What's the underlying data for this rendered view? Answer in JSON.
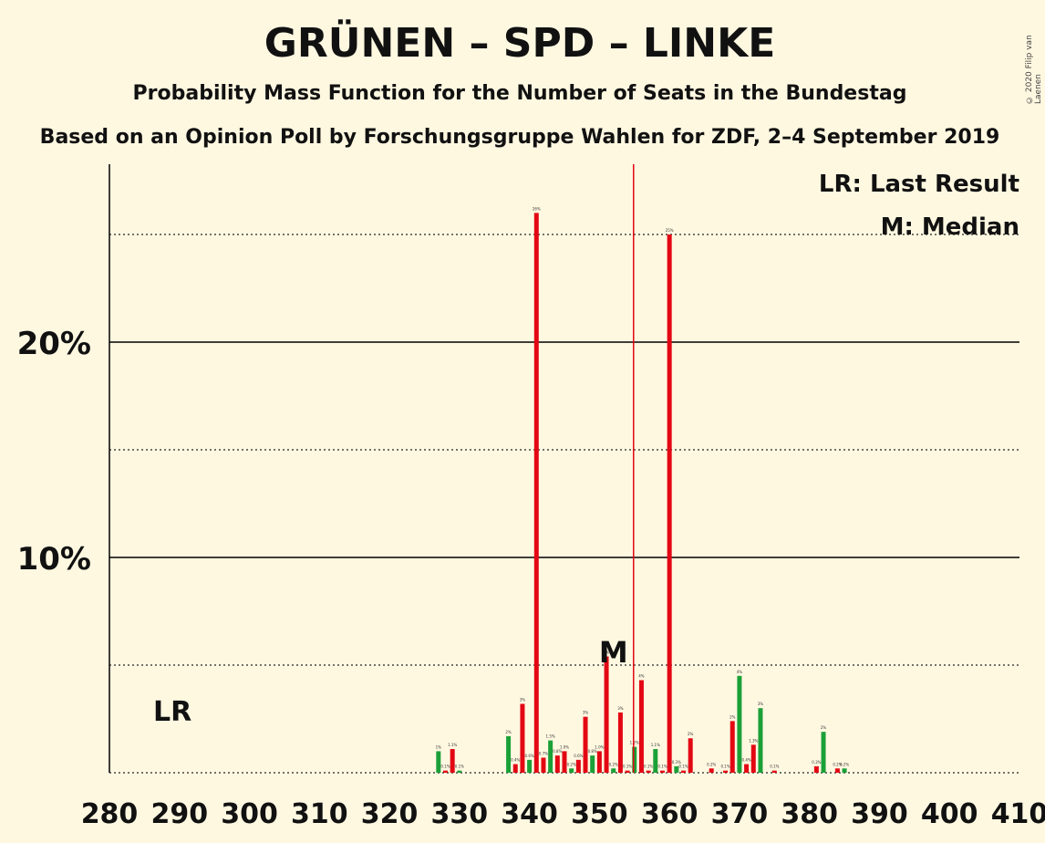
{
  "header": {
    "title": "GRÜNEN – SPD – LINKE",
    "subtitle": "Probability Mass Function for the Number of Seats in the Bundestag",
    "subtitle2": "Based on an Opinion Poll by Forschungsgruppe Wahlen for ZDF, 2–4 September 2019",
    "copyright": "© 2020 Filip van Laenen"
  },
  "legend": {
    "lr": "LR: Last Result",
    "median": "M: Median"
  },
  "chart_data": {
    "type": "bar",
    "xlabel": "",
    "ylabel": "",
    "xlim": [
      280,
      410
    ],
    "ylim": [
      0,
      28
    ],
    "x_ticks": [
      280,
      290,
      300,
      310,
      320,
      330,
      340,
      350,
      360,
      370,
      380,
      390,
      400,
      410
    ],
    "y_ticks": [
      {
        "value": 10,
        "label": "10%"
      },
      {
        "value": 20,
        "label": "20%"
      }
    ],
    "y_dotted_lines": [
      5,
      15,
      25
    ],
    "majority_line": 355,
    "last_result": {
      "x": 289,
      "label": "LR"
    },
    "median": {
      "x": 352,
      "label": "M"
    },
    "colors": {
      "red": "#E30613",
      "green": "#1AA037",
      "majority": "#E30613"
    },
    "bars": [
      {
        "x": 327,
        "value": 1.0,
        "color": "green",
        "label": "1%"
      },
      {
        "x": 328,
        "value": 0.1,
        "color": "red",
        "label": "0.1%"
      },
      {
        "x": 329,
        "value": 1.1,
        "color": "red",
        "label": "1.1%"
      },
      {
        "x": 330,
        "value": 0.1,
        "color": "green",
        "label": "0.1%"
      },
      {
        "x": 337,
        "value": 1.7,
        "color": "green",
        "label": "2%"
      },
      {
        "x": 338,
        "value": 0.4,
        "color": "red",
        "label": "0.4%"
      },
      {
        "x": 339,
        "value": 3.2,
        "color": "red",
        "label": "3%"
      },
      {
        "x": 340,
        "value": 0.6,
        "color": "green",
        "label": "0.6%"
      },
      {
        "x": 341,
        "value": 26.0,
        "color": "red",
        "label": "26%"
      },
      {
        "x": 342,
        "value": 0.7,
        "color": "red",
        "label": "0.7%"
      },
      {
        "x": 343,
        "value": 1.5,
        "color": "green",
        "label": "1.5%"
      },
      {
        "x": 344,
        "value": 0.8,
        "color": "red",
        "label": "0.8%"
      },
      {
        "x": 345,
        "value": 1.0,
        "color": "red",
        "label": "1.0%"
      },
      {
        "x": 346,
        "value": 0.2,
        "color": "green",
        "label": "0.2%"
      },
      {
        "x": 347,
        "value": 0.6,
        "color": "red",
        "label": "0.6%"
      },
      {
        "x": 348,
        "value": 2.6,
        "color": "red",
        "label": "3%"
      },
      {
        "x": 349,
        "value": 0.8,
        "color": "green",
        "label": "0.8%"
      },
      {
        "x": 350,
        "value": 1.0,
        "color": "red",
        "label": "1.0%"
      },
      {
        "x": 351,
        "value": 5.4,
        "color": "red",
        "label": "5%"
      },
      {
        "x": 352,
        "value": 0.2,
        "color": "green",
        "label": "0.2%"
      },
      {
        "x": 353,
        "value": 2.8,
        "color": "red",
        "label": "3%"
      },
      {
        "x": 354,
        "value": 0.1,
        "color": "red",
        "label": "0.1%"
      },
      {
        "x": 355,
        "value": 1.2,
        "color": "green",
        "label": "1.2%"
      },
      {
        "x": 356,
        "value": 4.3,
        "color": "red",
        "label": "4%"
      },
      {
        "x": 357,
        "value": 0.1,
        "color": "red",
        "label": "0.1%"
      },
      {
        "x": 358,
        "value": 1.1,
        "color": "green",
        "label": "1.1%"
      },
      {
        "x": 359,
        "value": 0.1,
        "color": "red",
        "label": "0.1%"
      },
      {
        "x": 360,
        "value": 25.0,
        "color": "red",
        "label": "25%"
      },
      {
        "x": 361,
        "value": 0.3,
        "color": "green",
        "label": "0.3%"
      },
      {
        "x": 362,
        "value": 0.1,
        "color": "red",
        "label": "0.1%"
      },
      {
        "x": 363,
        "value": 1.6,
        "color": "red",
        "label": "2%"
      },
      {
        "x": 366,
        "value": 0.2,
        "color": "red",
        "label": "0.2%"
      },
      {
        "x": 368,
        "value": 0.1,
        "color": "red",
        "label": "0.1%"
      },
      {
        "x": 369,
        "value": 2.4,
        "color": "red",
        "label": "2%"
      },
      {
        "x": 370,
        "value": 4.5,
        "color": "green",
        "label": "4%"
      },
      {
        "x": 371,
        "value": 0.4,
        "color": "red",
        "label": "0.4%"
      },
      {
        "x": 372,
        "value": 1.3,
        "color": "red",
        "label": "1.3%"
      },
      {
        "x": 373,
        "value": 3.0,
        "color": "green",
        "label": "3%"
      },
      {
        "x": 375,
        "value": 0.1,
        "color": "red",
        "label": "0.1%"
      },
      {
        "x": 381,
        "value": 0.3,
        "color": "red",
        "label": "0.3%"
      },
      {
        "x": 382,
        "value": 1.9,
        "color": "green",
        "label": "2%"
      },
      {
        "x": 384,
        "value": 0.2,
        "color": "red",
        "label": "0.2%"
      },
      {
        "x": 385,
        "value": 0.2,
        "color": "green",
        "label": "0.2%"
      }
    ]
  }
}
